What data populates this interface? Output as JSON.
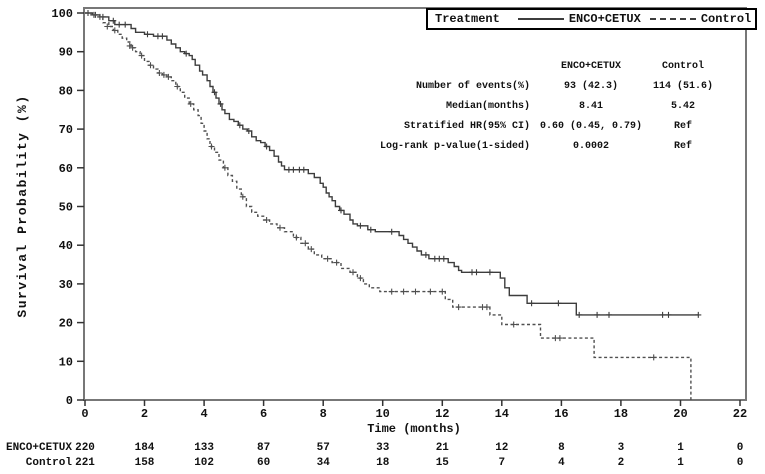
{
  "colors": {
    "background": "#ffffff",
    "text": "#111111",
    "frame": "#777777",
    "tick": "#333333",
    "curve_enco": "#3d3d3d",
    "curve_control": "#4f4f4f",
    "legend_border": "#000000"
  },
  "legend": {
    "title": "Treatment",
    "entries": [
      {
        "label": "ENCO+CETUX",
        "style": "solid"
      },
      {
        "label": "Control",
        "style": "dashed"
      }
    ]
  },
  "stats_table": {
    "columns": [
      "ENCO+CETUX",
      "Control"
    ],
    "rows": [
      {
        "label": "Number of events(%)",
        "values": [
          "93 (42.3)",
          "114 (51.6)"
        ]
      },
      {
        "label": "Median(months)",
        "values": [
          "8.41",
          "5.42"
        ]
      },
      {
        "label": "Stratified HR(95% CI)",
        "values": [
          "0.60 (0.45, 0.79)",
          "Ref"
        ]
      },
      {
        "label": "Log-rank p-value(1-sided)",
        "values": [
          "0.0002",
          "Ref"
        ]
      }
    ]
  },
  "chart_data": {
    "type": "line",
    "subtype": "kaplan-meier-step",
    "title": "",
    "xlabel": "Time (months)",
    "ylabel": "Survival Probability (%)",
    "xlim": [
      0,
      22
    ],
    "ylim": [
      0,
      100
    ],
    "xticks": [
      0,
      2,
      4,
      6,
      8,
      10,
      12,
      14,
      16,
      18,
      20,
      22
    ],
    "yticks": [
      0,
      10,
      20,
      30,
      40,
      50,
      60,
      70,
      80,
      90,
      100
    ],
    "grid": false,
    "legend_position": "top-right",
    "series": [
      {
        "name": "ENCO+CETUX",
        "style": "solid",
        "median_months": 8.41,
        "events": "93 (42.3)",
        "steps": [
          [
            0,
            100
          ],
          [
            0.25,
            99.5
          ],
          [
            0.5,
            99
          ],
          [
            0.8,
            98
          ],
          [
            1.0,
            97
          ],
          [
            1.55,
            96
          ],
          [
            1.7,
            95
          ],
          [
            2.0,
            94.5
          ],
          [
            2.3,
            94
          ],
          [
            2.75,
            93
          ],
          [
            2.9,
            92
          ],
          [
            3.05,
            91
          ],
          [
            3.2,
            90
          ],
          [
            3.35,
            89.5
          ],
          [
            3.5,
            89
          ],
          [
            3.6,
            88
          ],
          [
            3.7,
            86.5
          ],
          [
            3.85,
            85
          ],
          [
            3.95,
            84
          ],
          [
            4.1,
            82.5
          ],
          [
            4.2,
            81
          ],
          [
            4.3,
            79.5
          ],
          [
            4.4,
            78
          ],
          [
            4.5,
            76.5
          ],
          [
            4.6,
            75
          ],
          [
            4.7,
            74
          ],
          [
            4.85,
            72.5
          ],
          [
            5.0,
            72
          ],
          [
            5.15,
            71
          ],
          [
            5.3,
            70
          ],
          [
            5.45,
            69.5
          ],
          [
            5.6,
            68
          ],
          [
            5.75,
            67
          ],
          [
            5.9,
            66.5
          ],
          [
            6.05,
            65.5
          ],
          [
            6.2,
            64.5
          ],
          [
            6.35,
            63
          ],
          [
            6.5,
            61.5
          ],
          [
            6.6,
            60.5
          ],
          [
            6.7,
            59.5
          ],
          [
            7.5,
            58.5
          ],
          [
            7.7,
            57.5
          ],
          [
            7.9,
            56
          ],
          [
            8.0,
            55
          ],
          [
            8.1,
            53.5
          ],
          [
            8.2,
            52.5
          ],
          [
            8.3,
            51.5
          ],
          [
            8.41,
            50
          ],
          [
            8.55,
            49
          ],
          [
            8.7,
            48
          ],
          [
            8.9,
            46.5
          ],
          [
            9.0,
            45.5
          ],
          [
            9.15,
            45
          ],
          [
            9.5,
            44
          ],
          [
            9.75,
            43.5
          ],
          [
            10.55,
            42.5
          ],
          [
            10.7,
            41.5
          ],
          [
            10.85,
            40.5
          ],
          [
            11.0,
            39.5
          ],
          [
            11.15,
            38.5
          ],
          [
            11.3,
            37.5
          ],
          [
            11.55,
            36.5
          ],
          [
            12.2,
            35.5
          ],
          [
            12.4,
            34.5
          ],
          [
            12.55,
            33.5
          ],
          [
            12.65,
            33
          ],
          [
            13.95,
            31.5
          ],
          [
            14.1,
            29
          ],
          [
            14.25,
            27
          ],
          [
            14.85,
            25
          ],
          [
            16.5,
            22
          ],
          [
            20.6,
            22
          ]
        ],
        "censors": [
          [
            0.1,
            100
          ],
          [
            0.35,
            99.5
          ],
          [
            0.6,
            99
          ],
          [
            0.95,
            98
          ],
          [
            1.15,
            97
          ],
          [
            1.35,
            97
          ],
          [
            2.1,
            94.5
          ],
          [
            2.45,
            94
          ],
          [
            2.6,
            94
          ],
          [
            3.4,
            89.5
          ],
          [
            4.35,
            79.5
          ],
          [
            4.55,
            76.5
          ],
          [
            5.2,
            71
          ],
          [
            5.5,
            69.5
          ],
          [
            6.1,
            65.5
          ],
          [
            6.85,
            59.5
          ],
          [
            7.0,
            59.5
          ],
          [
            7.2,
            59.5
          ],
          [
            7.35,
            59.5
          ],
          [
            8.6,
            49
          ],
          [
            9.25,
            45
          ],
          [
            9.6,
            44
          ],
          [
            10.3,
            43.5
          ],
          [
            11.45,
            37.5
          ],
          [
            11.75,
            36.5
          ],
          [
            11.9,
            36.5
          ],
          [
            12.05,
            36.5
          ],
          [
            13.0,
            33
          ],
          [
            13.15,
            33
          ],
          [
            13.6,
            33
          ],
          [
            15.0,
            25
          ],
          [
            15.9,
            25
          ],
          [
            16.6,
            22
          ],
          [
            17.2,
            22
          ],
          [
            17.6,
            22
          ],
          [
            19.4,
            22
          ],
          [
            19.6,
            22
          ],
          [
            20.6,
            22
          ]
        ]
      },
      {
        "name": "Control",
        "style": "dashed",
        "median_months": 5.42,
        "events": "114 (51.6)",
        "steps": [
          [
            0,
            100
          ],
          [
            0.2,
            99.5
          ],
          [
            0.4,
            99
          ],
          [
            0.6,
            97.5
          ],
          [
            0.8,
            96.5
          ],
          [
            0.95,
            95.5
          ],
          [
            1.1,
            94.5
          ],
          [
            1.25,
            93.5
          ],
          [
            1.4,
            92.5
          ],
          [
            1.55,
            91
          ],
          [
            1.7,
            90
          ],
          [
            1.85,
            89
          ],
          [
            2.0,
            87.5
          ],
          [
            2.15,
            86.5
          ],
          [
            2.3,
            85.5
          ],
          [
            2.45,
            84.5
          ],
          [
            2.6,
            84
          ],
          [
            2.75,
            83.5
          ],
          [
            2.9,
            82.5
          ],
          [
            3.05,
            81
          ],
          [
            3.2,
            79.5
          ],
          [
            3.35,
            78
          ],
          [
            3.5,
            76.5
          ],
          [
            3.65,
            75
          ],
          [
            3.8,
            73.5
          ],
          [
            3.9,
            71.5
          ],
          [
            4.0,
            69.5
          ],
          [
            4.1,
            67.5
          ],
          [
            4.2,
            65.5
          ],
          [
            4.35,
            64
          ],
          [
            4.5,
            62
          ],
          [
            4.65,
            60
          ],
          [
            4.8,
            58
          ],
          [
            4.95,
            56.5
          ],
          [
            5.1,
            54.5
          ],
          [
            5.25,
            52.5
          ],
          [
            5.42,
            50
          ],
          [
            5.6,
            48.5
          ],
          [
            5.8,
            47.5
          ],
          [
            6.0,
            46.5
          ],
          [
            6.2,
            45.5
          ],
          [
            6.45,
            44.5
          ],
          [
            6.7,
            43.5
          ],
          [
            7.0,
            42
          ],
          [
            7.25,
            40.5
          ],
          [
            7.5,
            39
          ],
          [
            7.7,
            37.5
          ],
          [
            7.95,
            36.5
          ],
          [
            8.3,
            35.5
          ],
          [
            8.6,
            34
          ],
          [
            8.9,
            33
          ],
          [
            9.15,
            31.5
          ],
          [
            9.35,
            30
          ],
          [
            9.55,
            29
          ],
          [
            9.9,
            28
          ],
          [
            12.1,
            26
          ],
          [
            12.35,
            24
          ],
          [
            13.6,
            22
          ],
          [
            14.0,
            19.5
          ],
          [
            15.3,
            16
          ],
          [
            17.1,
            11
          ],
          [
            20.35,
            0
          ]
        ],
        "censors": [
          [
            0.3,
            99.5
          ],
          [
            0.5,
            99
          ],
          [
            0.75,
            96.5
          ],
          [
            1.0,
            95.5
          ],
          [
            1.5,
            91.5
          ],
          [
            1.6,
            91
          ],
          [
            1.9,
            89
          ],
          [
            2.2,
            86.5
          ],
          [
            2.5,
            84.5
          ],
          [
            2.65,
            84
          ],
          [
            2.8,
            83.5
          ],
          [
            3.1,
            81
          ],
          [
            3.55,
            76.5
          ],
          [
            4.25,
            65.5
          ],
          [
            4.7,
            60
          ],
          [
            5.3,
            52.5
          ],
          [
            6.1,
            46.5
          ],
          [
            6.55,
            44.5
          ],
          [
            7.1,
            42
          ],
          [
            7.4,
            40.5
          ],
          [
            7.6,
            39
          ],
          [
            8.15,
            36.5
          ],
          [
            8.45,
            35.5
          ],
          [
            9.0,
            33
          ],
          [
            9.25,
            31.5
          ],
          [
            10.3,
            28
          ],
          [
            10.7,
            28
          ],
          [
            11.1,
            28
          ],
          [
            11.6,
            28
          ],
          [
            12.0,
            28
          ],
          [
            12.55,
            24
          ],
          [
            13.35,
            24
          ],
          [
            13.5,
            24
          ],
          [
            14.4,
            19.5
          ],
          [
            15.8,
            16
          ],
          [
            15.95,
            16
          ],
          [
            19.1,
            11
          ]
        ]
      }
    ],
    "at_risk": {
      "rows": [
        {
          "label": "ENCO+CETUX",
          "counts": [
            220,
            184,
            133,
            87,
            57,
            33,
            21,
            12,
            8,
            3,
            1,
            0
          ]
        },
        {
          "label": "Control",
          "counts": [
            221,
            158,
            102,
            60,
            34,
            18,
            15,
            7,
            4,
            2,
            1,
            0
          ]
        }
      ]
    }
  }
}
